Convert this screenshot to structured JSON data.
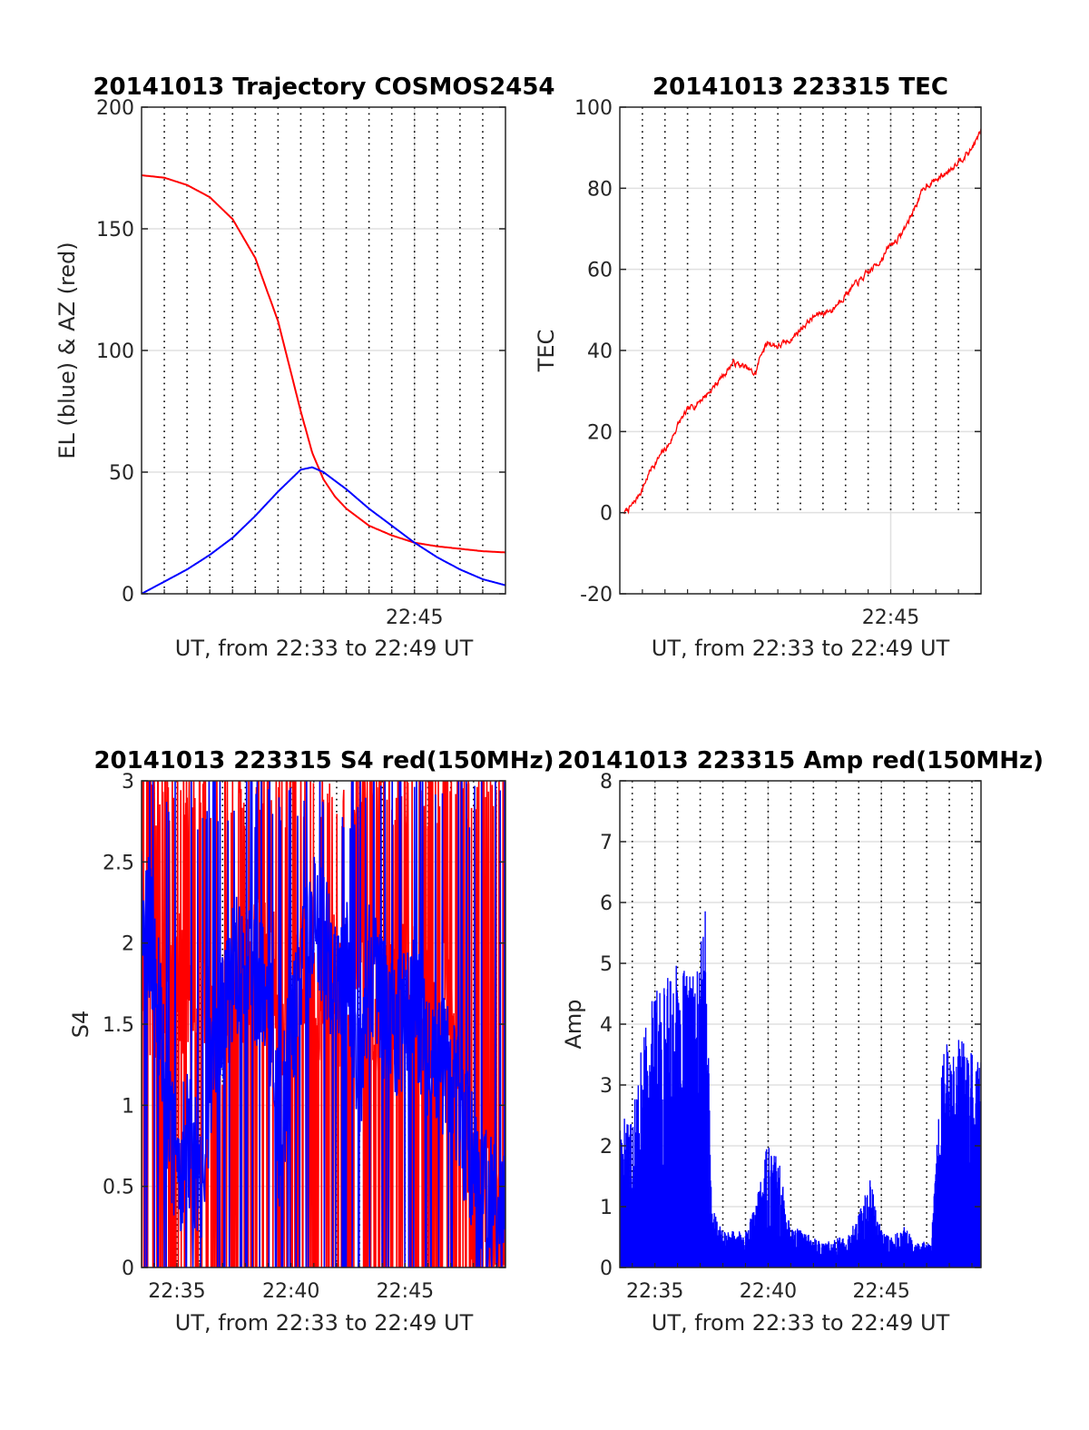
{
  "figure": {
    "background": "#ffffff",
    "trace_colors": {
      "red": "#ff0000",
      "blue": "#0000ff"
    },
    "minor_grid_style": "dotted black vertical lines every 1 minute",
    "major_grid_style": "light gray"
  },
  "chart_data": [
    {
      "id": "trajectory",
      "type": "line",
      "title": "20141013 Trajectory COSMOS2454",
      "xlabel": "UT, from 22:33 to 22:49 UT",
      "ylabel": "EL (blue) & AZ (red)",
      "x_unit": "minutes after 22:33 UT",
      "xlim": [
        0,
        16
      ],
      "ylim": [
        0,
        200
      ],
      "yticks": [
        0,
        50,
        100,
        150,
        200
      ],
      "xtick_labels": [
        {
          "x": 12,
          "label": "22:45"
        }
      ],
      "minor_x_lines": [
        1,
        2,
        3,
        4,
        5,
        6,
        7,
        8,
        9,
        10,
        11,
        12,
        13,
        14,
        15,
        16
      ],
      "grid": true,
      "series": [
        {
          "color": "#ff0000",
          "style": "smooth",
          "x": [
            0,
            1,
            2,
            3,
            4,
            5,
            6,
            7,
            7.5,
            8,
            8.5,
            9,
            10,
            11,
            12,
            13,
            14,
            15,
            16
          ],
          "y": [
            172,
            171,
            168,
            163,
            154,
            138,
            112,
            75,
            58,
            47,
            40,
            35,
            28,
            24,
            21,
            19.5,
            18.5,
            17.5,
            17
          ]
        },
        {
          "color": "#0000ff",
          "style": "smooth",
          "x": [
            0,
            1,
            2,
            3,
            4,
            5,
            6,
            7,
            7.5,
            8,
            9,
            10,
            11,
            12,
            13,
            14,
            15,
            16
          ],
          "y": [
            0,
            5,
            10,
            16,
            23,
            32,
            42,
            51,
            52,
            50,
            43,
            35,
            28,
            21,
            15,
            10,
            6,
            3.5
          ]
        }
      ]
    },
    {
      "id": "tec",
      "type": "line",
      "title": "20141013 223315 TEC",
      "xlabel": "UT, from 22:33 to 22:49 UT",
      "ylabel": "TEC",
      "x_unit": "minutes after 22:33 UT",
      "xlim": [
        0,
        16
      ],
      "ylim": [
        -20,
        100
      ],
      "yticks": [
        -20,
        0,
        20,
        40,
        60,
        80,
        100
      ],
      "xtick_labels": [
        {
          "x": 12,
          "label": "22:45"
        }
      ],
      "minor_x_lines": [
        1,
        2,
        3,
        4,
        5,
        6,
        7,
        8,
        9,
        10,
        11,
        12,
        13,
        14,
        15,
        16
      ],
      "minor_y_range": [
        0,
        100
      ],
      "grid": true,
      "series": [
        {
          "color": "#ff0000",
          "style": "noisy",
          "noise": 0.6,
          "x": [
            0.2,
            0.6,
            1,
            1.4,
            1.8,
            2.2,
            2.6,
            3,
            3.4,
            4,
            4.6,
            5,
            5.5,
            6,
            6.3,
            6.6,
            7,
            7.4,
            7.8,
            8.3,
            8.8,
            9.4,
            10,
            10.6,
            11,
            11.5,
            12,
            12.4,
            12.8,
            13.2,
            13.6,
            14,
            14.5,
            15,
            15.5,
            16
          ],
          "y": [
            0,
            2,
            6,
            11,
            14,
            17,
            22,
            25,
            27,
            30,
            34,
            37,
            36,
            34,
            40,
            42,
            41,
            42,
            44,
            47,
            49,
            50,
            54,
            57,
            59,
            62,
            66,
            68,
            72,
            77,
            81,
            82,
            84,
            87,
            89,
            94
          ]
        }
      ]
    },
    {
      "id": "s4",
      "type": "line",
      "title": "20141013 223315 S4 red(150MHz)",
      "xlabel": "UT, from 22:33 to 22:49 UT",
      "ylabel": "S4",
      "x_unit": "minutes after 22:33 UT",
      "xlim": [
        0.45,
        16.4
      ],
      "ylim": [
        0,
        3
      ],
      "yticks": [
        0,
        0.5,
        1,
        1.5,
        2,
        2.5,
        3
      ],
      "ytick_labels": [
        "0",
        "0.5",
        "1",
        "1.5",
        "2",
        "2.5",
        "3"
      ],
      "xtick_labels": [
        {
          "x": 2,
          "label": "22:35"
        },
        {
          "x": 7,
          "label": "22:40"
        },
        {
          "x": 12,
          "label": "22:45"
        }
      ],
      "minor_x_lines": [
        1,
        2,
        3,
        4,
        5,
        6,
        7,
        8,
        9,
        10,
        11,
        12,
        13,
        14,
        15,
        16
      ],
      "grid": true,
      "series": [
        {
          "color": "#ff0000",
          "style": "spiky",
          "seed": 11,
          "spikes": 0.5,
          "x": [
            0.45,
            1,
            2,
            3,
            4,
            5,
            6,
            7,
            7.5,
            8,
            9,
            9.5,
            10,
            11,
            12,
            13,
            14,
            15,
            15.5,
            16,
            16.4
          ],
          "y": [
            2.0,
            1.6,
            1.8,
            1.5,
            1.3,
            1.8,
            1.9,
            1.3,
            1.9,
            1.6,
            1.8,
            1.4,
            2.0,
            1.5,
            1.8,
            1.6,
            1.6,
            0.4,
            0.4,
            0.4,
            0.4
          ]
        },
        {
          "color": "#0000ff",
          "style": "spiky",
          "seed": 29,
          "spikes": 0.15,
          "x": [
            0.45,
            0.8,
            1.2,
            1.6,
            2,
            2.5,
            3,
            3.5,
            4,
            4.4,
            4.8,
            5.3,
            6,
            6.5,
            7,
            7.5,
            8,
            8.5,
            9,
            9.5,
            10,
            10.5,
            11,
            11.5,
            12,
            12.5,
            13,
            14,
            14.5,
            15,
            15.6,
            16,
            16.4
          ],
          "y": [
            2.2,
            2.1,
            1.6,
            0.9,
            0.6,
            0.8,
            0.5,
            1.2,
            1.5,
            1.8,
            1.9,
            1.8,
            1.7,
            0.8,
            1.4,
            1.9,
            2.1,
            2.0,
            1.7,
            1.9,
            1.2,
            1.9,
            1.6,
            1.5,
            1.5,
            1.6,
            1.3,
            1.2,
            0.9,
            0.6,
            0.38,
            0.37,
            0.37
          ]
        }
      ]
    },
    {
      "id": "amp",
      "type": "line",
      "title": "20141013 223315 Amp red(150MHz)",
      "xlabel": "UT, from 22:33 to 22:49 UT",
      "ylabel": "Amp",
      "x_unit": "minutes after 22:33 UT",
      "xlim": [
        0.45,
        16.4
      ],
      "ylim": [
        0,
        8
      ],
      "yticks": [
        0,
        1,
        2,
        3,
        4,
        5,
        6,
        7,
        8
      ],
      "xtick_labels": [
        {
          "x": 2,
          "label": "22:35"
        },
        {
          "x": 7,
          "label": "22:40"
        },
        {
          "x": 12,
          "label": "22:45"
        }
      ],
      "minor_x_lines": [
        1,
        2,
        3,
        4,
        5,
        6,
        7,
        8,
        9,
        10,
        11,
        12,
        13,
        14,
        15,
        16
      ],
      "grid": true,
      "series": [
        {
          "color": "#ff0000",
          "style": "bars",
          "seed": 5,
          "x": [
            0.45,
            4,
            5,
            6,
            7,
            8,
            9,
            10,
            11,
            12,
            13,
            14,
            15,
            16,
            16.4
          ],
          "y": [
            0.3,
            0.2,
            0.1,
            0.1,
            0.1,
            0.1,
            0.1,
            0.1,
            0.1,
            0.1,
            0.1,
            0.1,
            0.2,
            0.2,
            0.2
          ]
        },
        {
          "color": "#0000ff",
          "style": "bars",
          "seed": 17,
          "x": [
            0.45,
            1,
            1.5,
            2,
            2.5,
            3,
            3.5,
            4,
            4.2,
            4.5,
            5,
            5.5,
            6,
            6.5,
            7,
            7.5,
            8,
            8.5,
            9,
            9.5,
            10,
            10.5,
            11,
            11.5,
            12,
            12.5,
            13,
            13.5,
            14,
            14.2,
            14.7,
            15.2,
            15.7,
            16.2,
            16.4
          ],
          "y": [
            2.5,
            2.8,
            3.8,
            4.6,
            4.8,
            5.0,
            4.8,
            5.0,
            6.8,
            1.0,
            0.6,
            0.6,
            0.6,
            1.1,
            2.2,
            1.7,
            0.7,
            0.6,
            0.5,
            0.4,
            0.5,
            0.5,
            0.9,
            1.5,
            0.6,
            0.5,
            0.7,
            0.4,
            0.45,
            0.4,
            3.6,
            3.8,
            3.7,
            3.6,
            3.4
          ]
        }
      ]
    }
  ]
}
